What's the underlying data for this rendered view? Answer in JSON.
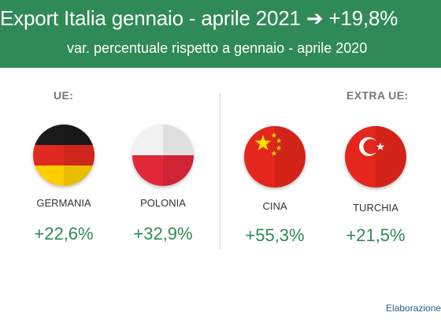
{
  "header": {
    "title": "Export Italia gennaio - aprile 2021 ➔ +19,8%",
    "subtitle": "var. percentuale rispetto a gennaio - aprile 2020",
    "background_color": "#2f8a57"
  },
  "sections": {
    "ue_label": "UE:",
    "extra_ue_label": "EXTRA UE:"
  },
  "countries": [
    {
      "name": "GERMANIA",
      "value": "+22,6%",
      "flag_icon": "germany-flag-icon"
    },
    {
      "name": "POLONIA",
      "value": "+32,9%",
      "flag_icon": "poland-flag-icon"
    },
    {
      "name": "CINA",
      "value": "+55,3%",
      "flag_icon": "china-flag-icon"
    },
    {
      "name": "TURCHIA",
      "value": "+21,5%",
      "flag_icon": "turkey-flag-icon"
    }
  ],
  "footer": {
    "credit": "Elaborazione"
  },
  "colors": {
    "accent_green": "#2f8a57",
    "label_gray": "#777777",
    "credit_blue": "#2b5f8a"
  }
}
